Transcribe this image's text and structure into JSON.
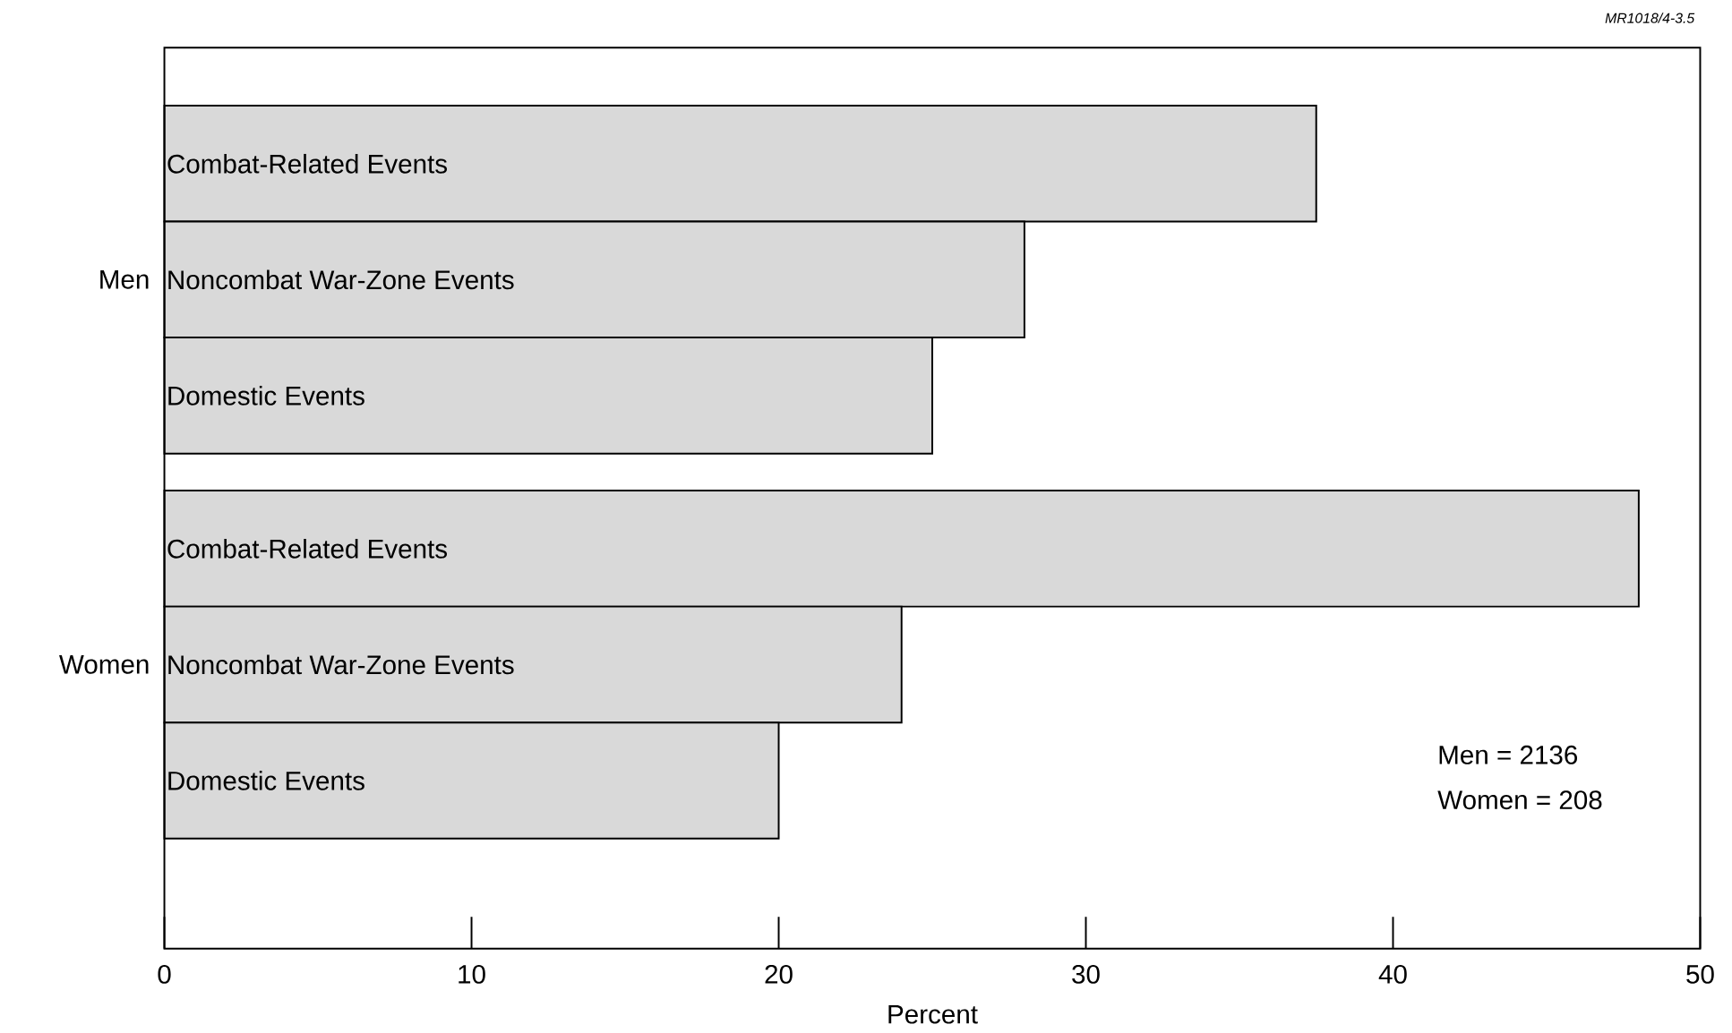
{
  "chart_data": {
    "type": "bar",
    "orientation": "horizontal",
    "categories": [
      "Combat-Related Events",
      "Noncombat War-Zone Events",
      "Domestic Events",
      "Combat-Related Events",
      "Noncombat War-Zone Events",
      "Domestic Events"
    ],
    "values": [
      37.5,
      28,
      25,
      48,
      24,
      20
    ],
    "color": "#d9d9d9",
    "xlabel": "Percent",
    "xlim": [
      0,
      50
    ],
    "xticks": [
      0,
      10,
      20,
      30,
      40,
      50
    ],
    "grid": false,
    "annotations": [
      "Men",
      "Women",
      "Men = 2136",
      "Women = 208",
      "MR1018/4-3.5"
    ]
  }
}
